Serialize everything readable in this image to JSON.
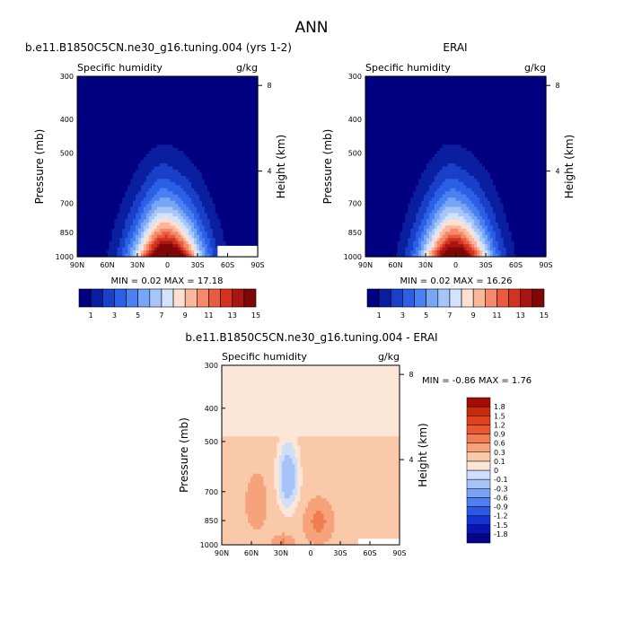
{
  "title": "ANN",
  "colors": {
    "model_scale": [
      "#000080",
      "#0a1fa0",
      "#1a3fc8",
      "#2a5fe6",
      "#4a80f2",
      "#78a6f6",
      "#a6c6fa",
      "#d2e3fd",
      "#fde0d2",
      "#f9b79c",
      "#f5896a",
      "#ea5a3e",
      "#d2321f",
      "#a81512",
      "#7e0707"
    ],
    "diff_scale": [
      "#05058c",
      "#0a14b4",
      "#1232d2",
      "#2c58e6",
      "#4f7ff0",
      "#7aa3f4",
      "#a5c3f8",
      "#cfdffb",
      "#fbe6d8",
      "#f9c9a9",
      "#f6a27a",
      "#f27d52",
      "#ec5730",
      "#e0401a",
      "#c82a0e",
      "#a30c07"
    ]
  },
  "chart_data": [
    {
      "type": "heatmap",
      "panel": "model",
      "header": "b.e11.B1850C5CN.ne30_g16.tuning.004 (yrs 1-2)",
      "variable": "Specific humidity",
      "units": "g/kg",
      "xlabel": "",
      "ylabel": "Pressure (mb)",
      "y2label": "Height (km)",
      "x_ticks": [
        "90N",
        "60N",
        "30N",
        "0",
        "30S",
        "60S",
        "90S"
      ],
      "x_tick_values": [
        90,
        60,
        30,
        0,
        -30,
        -60,
        -90
      ],
      "y_ticks": [
        300,
        400,
        500,
        700,
        850,
        1000
      ],
      "y2_ticks": [
        8,
        4
      ],
      "ylim": [
        300,
        1000
      ],
      "min": 0.02,
      "max": 17.18,
      "stats_text": "MIN =   0.02  MAX =   17.18",
      "surface_q": 17.0,
      "scale_height": 2.35,
      "missing_box": {
        "lat_from": -50,
        "lat_to": -90,
        "p_from": 930,
        "p_to": 1000
      },
      "colorbar_labels": [
        "1",
        "3",
        "5",
        "7",
        "9",
        "11",
        "13",
        "15"
      ],
      "colorbar_levels": [
        1,
        2,
        3,
        4,
        5,
        6,
        7,
        8,
        9,
        10,
        11,
        12,
        13,
        14,
        15
      ]
    },
    {
      "type": "heatmap",
      "panel": "obs",
      "header": "ERAI",
      "variable": "Specific humidity",
      "units": "g/kg",
      "xlabel": "",
      "ylabel": "Pressure (mb)",
      "y2label": "Height (km)",
      "x_ticks": [
        "90N",
        "60N",
        "30N",
        "0",
        "30S",
        "60S",
        "90S"
      ],
      "x_tick_values": [
        90,
        60,
        30,
        0,
        -30,
        -60,
        -90
      ],
      "y_ticks": [
        300,
        400,
        500,
        700,
        850,
        1000
      ],
      "y2_ticks": [
        8,
        4
      ],
      "ylim": [
        300,
        1000
      ],
      "min": 0.02,
      "max": 16.26,
      "stats_text": "MIN =   0.02  MAX =   16.26",
      "surface_q": 16.2,
      "scale_height": 2.3,
      "missing_box": null,
      "colorbar_labels": [
        "1",
        "3",
        "5",
        "7",
        "9",
        "11",
        "13",
        "15"
      ],
      "colorbar_levels": [
        1,
        2,
        3,
        4,
        5,
        6,
        7,
        8,
        9,
        10,
        11,
        12,
        13,
        14,
        15
      ]
    },
    {
      "type": "heatmap",
      "panel": "difference",
      "header": "b.e11.B1850C5CN.ne30_g16.tuning.004 - ERAI",
      "variable": "Specific humidity",
      "units": "g/kg",
      "xlabel": "",
      "ylabel": "Pressure (mb)",
      "y2label": "Height (km)",
      "x_ticks": [
        "90N",
        "60N",
        "30N",
        "0",
        "30S",
        "60S",
        "90S"
      ],
      "x_tick_values": [
        90,
        60,
        30,
        0,
        -30,
        -60,
        -90
      ],
      "y_ticks": [
        300,
        400,
        500,
        700,
        850,
        1000
      ],
      "y2_ticks": [
        8,
        4
      ],
      "ylim": [
        300,
        1000
      ],
      "min": -0.86,
      "max": 1.76,
      "stats_text": "MIN =   -0.86   MAX =    1.76",
      "missing_box": {
        "lat_from": -48,
        "lat_to": -90,
        "p_from": 960,
        "p_to": 1000
      },
      "colorbar_labels": [
        "1.8",
        "1.5",
        "1.2",
        "0.9",
        "0.6",
        "0.3",
        "0.1",
        "0",
        "-0.1",
        "-0.3",
        "-0.6",
        "-0.9",
        "-1.2",
        "-1.5",
        "-1.8"
      ],
      "colorbar_levels": [
        -1.8,
        -1.5,
        -1.2,
        -0.9,
        -0.6,
        -0.3,
        -0.1,
        0,
        0.1,
        0.3,
        0.6,
        0.9,
        1.2,
        1.5,
        1.8
      ]
    }
  ]
}
